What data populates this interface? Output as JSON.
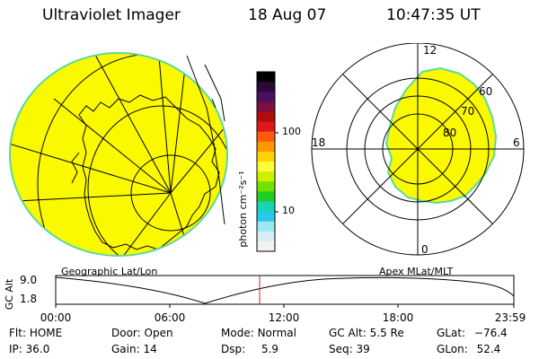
{
  "header": {
    "title": "Ultraviolet Imager",
    "date": "18 Aug 07",
    "time": "10:47:35 UT"
  },
  "colorbar": {
    "label": "photon cm⁻²s⁻¹",
    "ticks": [
      "100",
      "10"
    ],
    "colors": [
      "#000000",
      "#2a0838",
      "#4a0f60",
      "#7a1040",
      "#b20d0d",
      "#e01818",
      "#ff5a10",
      "#ff9600",
      "#ffd200",
      "#fffb3a",
      "#cdf000",
      "#72e000",
      "#22cc22",
      "#18d4b0",
      "#28c8e8",
      "#9be8f0",
      "#d4eef2",
      "#f2f2f2"
    ]
  },
  "polar_labels": {
    "top": "12",
    "left": "18",
    "right": "6",
    "bottom": "0",
    "lat60": "60",
    "lat70": "70",
    "lat80": "80"
  },
  "panel_titles": {
    "left": "Geographic Lat/Lon",
    "right": "Apex MLat/MLT"
  },
  "altitude_plot": {
    "ylabel": "GC Alt",
    "yticks": [
      "9.0",
      "1.8"
    ],
    "xticks": [
      "00:00",
      "06:00",
      "12:00",
      "18:00",
      "23:59"
    ],
    "marker_color": "#cc2222"
  },
  "status": {
    "flt_label": "Flt:",
    "flt_value": "HOME",
    "ip_label": "IP:",
    "ip_value": "36.0",
    "door_label": "Door:",
    "door_value": "Open",
    "gain_label": "Gain:",
    "gain_value": "14",
    "mode_label": "Mode:",
    "mode_value": "Normal",
    "dsp_label": "Dsp:",
    "dsp_value": "5.9",
    "gcalt_label": "GC Alt:",
    "gcalt_value": "5.5 Re",
    "seq_label": "Seq:",
    "seq_value": "39",
    "glat_label": "GLat:",
    "glat_value": "−76.4",
    "glon_label": "GLon:",
    "glon_value": "52.4"
  },
  "image_colors": {
    "aurora_fill": "#fbf900",
    "aurora_edge": "#5ad8a0"
  }
}
